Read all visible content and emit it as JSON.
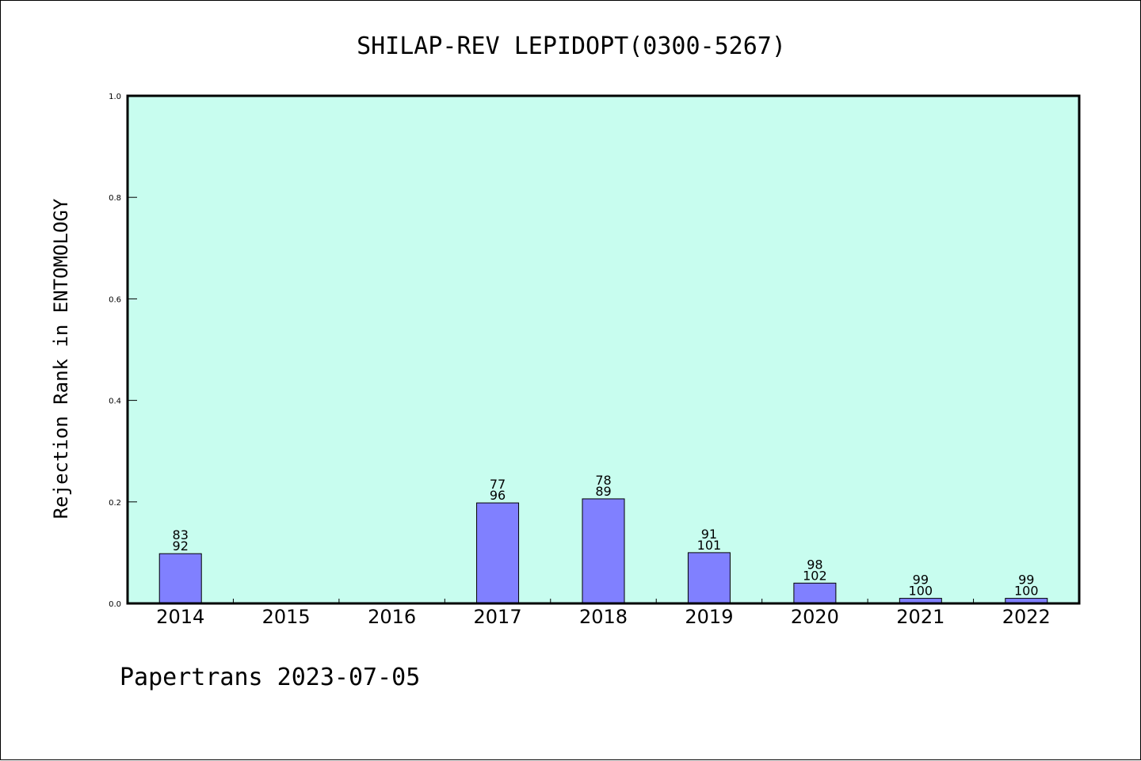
{
  "chart_data": {
    "type": "bar",
    "title": "SHILAP-REV LEPIDOPT(0300-5267)",
    "ylabel": "Rejection Rank in ENTOMOLOGY",
    "xlabel": "",
    "ylim": [
      0,
      1.0
    ],
    "yticks": [
      "0.0",
      "0.2",
      "0.4",
      "0.6",
      "0.8",
      "1.0"
    ],
    "categories": [
      "2014",
      "2015",
      "2016",
      "2017",
      "2018",
      "2019",
      "2020",
      "2021",
      "2022"
    ],
    "values": [
      0.098,
      0,
      0,
      0.198,
      0.206,
      0.1,
      0.04,
      0.01,
      0.01
    ],
    "labels_top": [
      "83",
      "",
      "",
      "77",
      "78",
      "91",
      "98",
      "99",
      "99"
    ],
    "labels_bottom": [
      "92",
      "",
      "",
      "96",
      "89",
      "101",
      "102",
      "100",
      "100"
    ],
    "grid": false,
    "colors": {
      "plot_background": "#c8fdef",
      "bar_fill": "#8080ff",
      "bar_stroke": "#000000"
    }
  },
  "footer": {
    "text": "Papertrans 2023-07-05"
  }
}
